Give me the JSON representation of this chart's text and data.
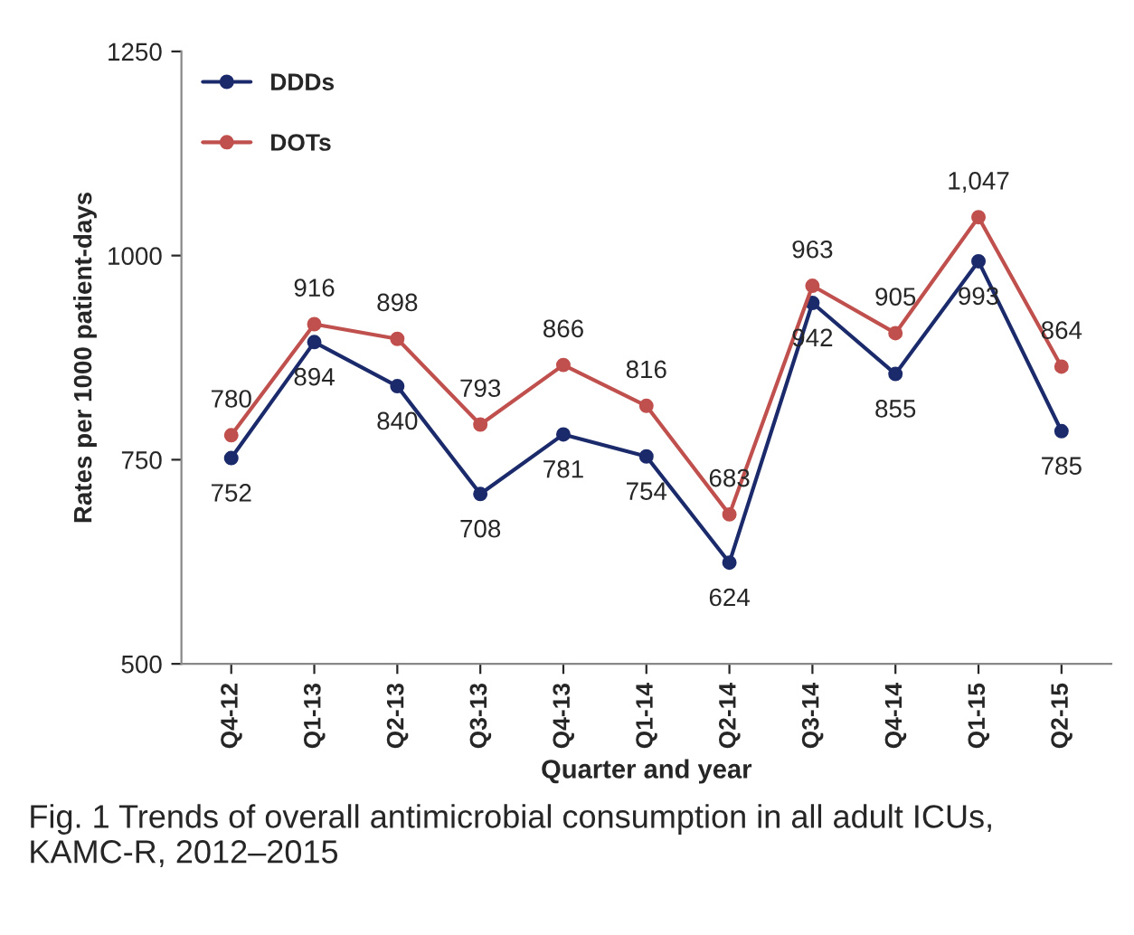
{
  "chart_data": {
    "type": "line",
    "xlabel": "Quarter and year",
    "ylabel": "Rates per 1000 patient-days",
    "categories": [
      "Q4-12",
      "Q1-13",
      "Q2-13",
      "Q3-13",
      "Q4-13",
      "Q1-14",
      "Q2-14",
      "Q3-14",
      "Q4-14",
      "Q1-15",
      "Q2-15"
    ],
    "series": [
      {
        "name": "DDDs",
        "color": "#1b2a6b",
        "values": [
          752,
          894,
          840,
          708,
          781,
          754,
          624,
          942,
          855,
          993,
          785
        ],
        "value_labels": [
          "752",
          "894",
          "840",
          "708",
          "781",
          "754",
          "624",
          "942",
          "855",
          "993",
          "785"
        ]
      },
      {
        "name": "DOTs",
        "color": "#c0504d",
        "values": [
          780,
          916,
          898,
          793,
          866,
          816,
          683,
          963,
          905,
          1047,
          864
        ],
        "value_labels": [
          "780",
          "916",
          "898",
          "793",
          "866",
          "816",
          "683",
          "963",
          "905",
          "1,047",
          "864"
        ]
      }
    ],
    "ylim": [
      500,
      1250
    ],
    "yticks": [
      500,
      750,
      1000,
      1250
    ],
    "grid": false,
    "legend": "top left",
    "marker": "circle",
    "line_style": "solid",
    "annotations": [
      "Fig. 1 Trends of overall antimicrobial consumption in all adult ICUs, KAMC-R, 2012–2015"
    ]
  }
}
